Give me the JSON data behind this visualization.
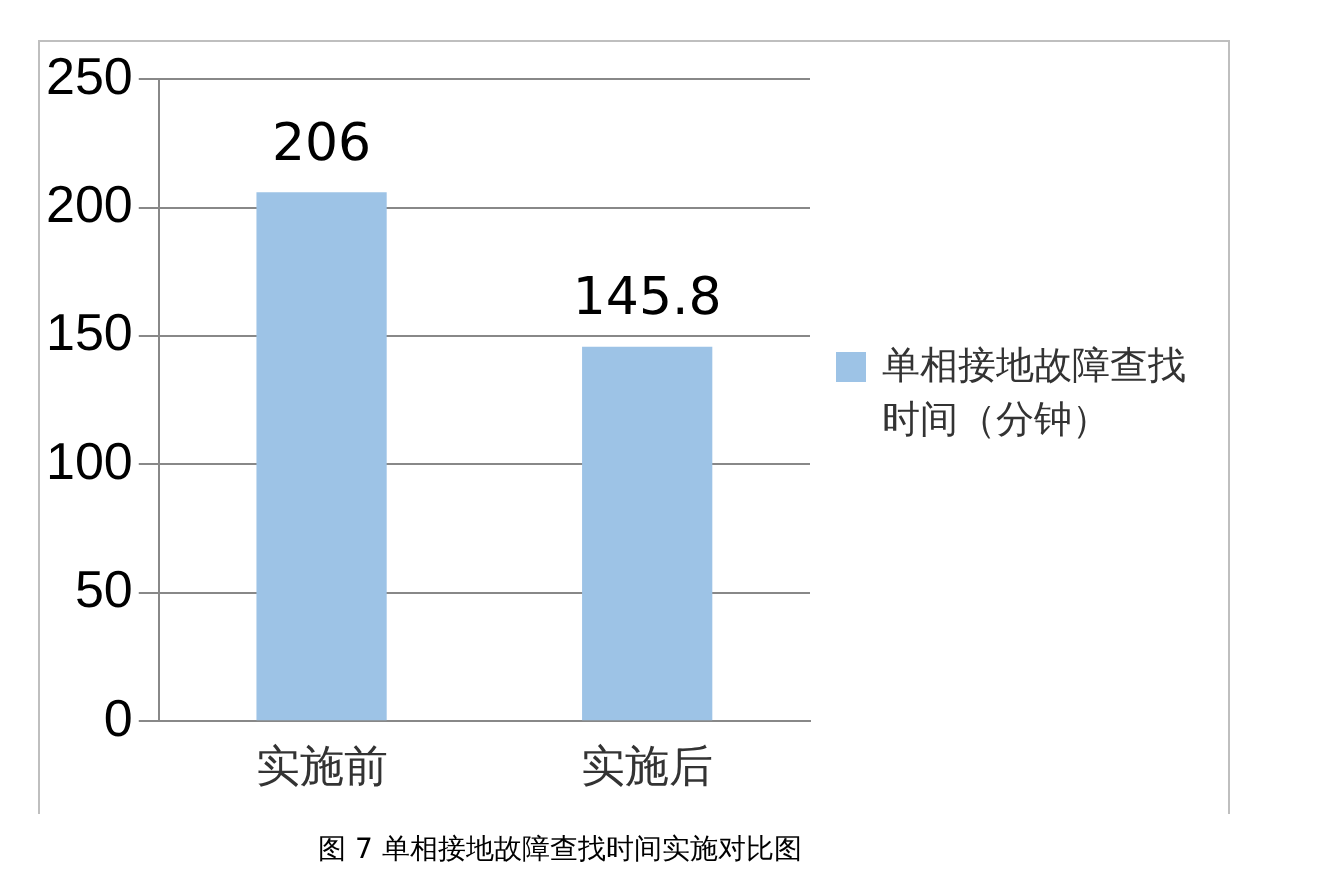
{
  "chart_data": {
    "type": "bar",
    "categories": [
      "实施前",
      "实施后"
    ],
    "series": [
      {
        "name": "单相接地故障查找时间（分钟）",
        "color": "#9dc3e6",
        "values": [
          206,
          145.8
        ]
      }
    ],
    "ylim": [
      0,
      250
    ],
    "yticks": [
      0,
      50,
      100,
      150,
      200,
      250
    ],
    "grid": "y",
    "legend": "right",
    "data_labels": true,
    "annotations": [
      "图 7 单相接地故障查找时间实施对比图"
    ]
  }
}
